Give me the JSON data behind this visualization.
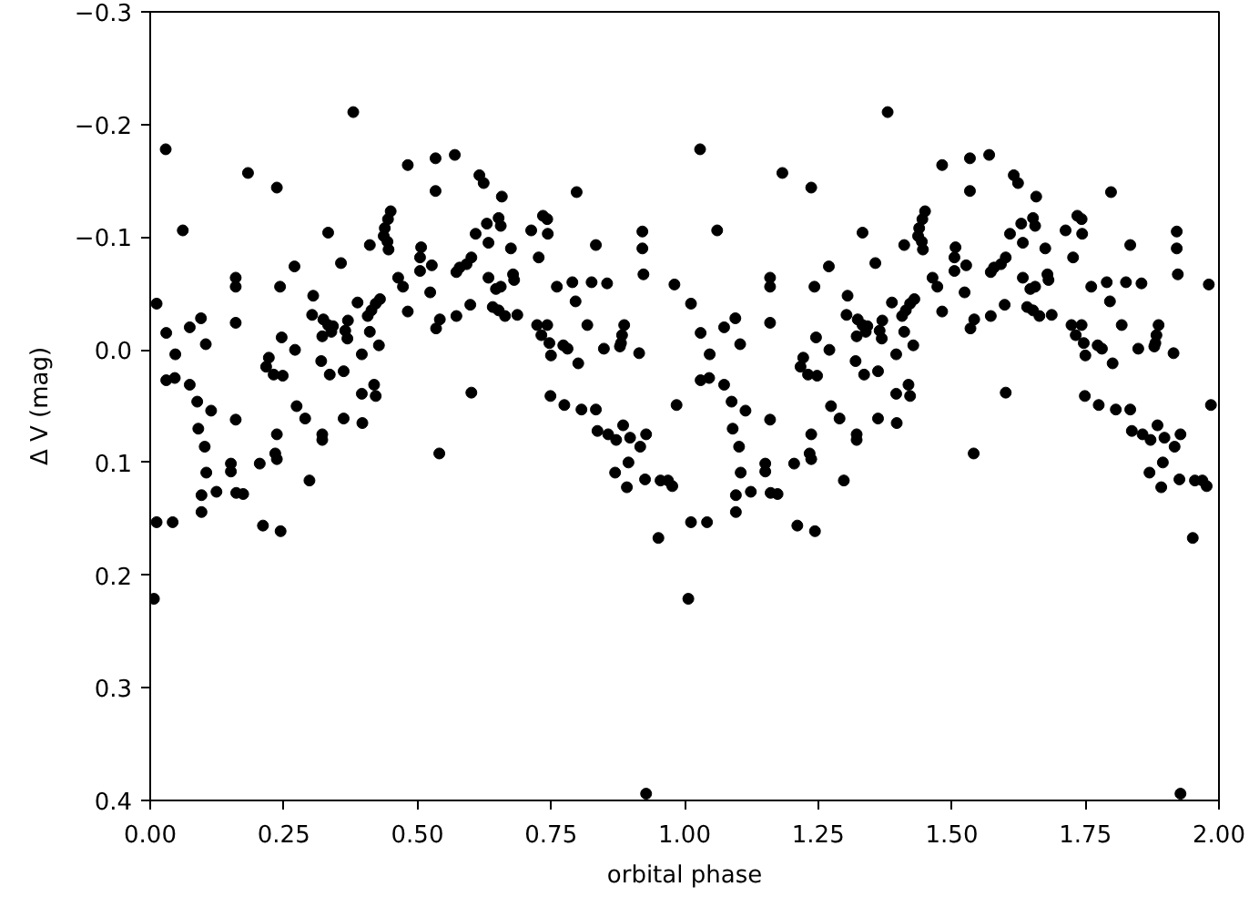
{
  "chart_data": {
    "type": "scatter",
    "xlabel": "orbital phase",
    "ylabel": "Δ V (mag)",
    "marker": "circle",
    "grid": false,
    "xlim": [
      0.0,
      2.0
    ],
    "ylim": [
      0.4,
      -0.3
    ],
    "xticks": [
      {
        "value": 0.0,
        "label": "0.00"
      },
      {
        "value": 0.25,
        "label": "0.25"
      },
      {
        "value": 0.5,
        "label": "0.50"
      },
      {
        "value": 0.75,
        "label": "0.75"
      },
      {
        "value": 1.0,
        "label": "1.00"
      },
      {
        "value": 1.25,
        "label": "1.25"
      },
      {
        "value": 1.5,
        "label": "1.50"
      },
      {
        "value": 1.75,
        "label": "1.75"
      },
      {
        "value": 2.0,
        "label": "2.00"
      }
    ],
    "yticks": [
      {
        "value": -0.3,
        "label": "−0.3"
      },
      {
        "value": -0.2,
        "label": "−0.2"
      },
      {
        "value": -0.1,
        "label": "−0.1"
      },
      {
        "value": 0.0,
        "label": "0.0"
      },
      0.1,
      0.2,
      0.3,
      0.4
    ],
    "series": [
      {
        "color": "#000000",
        "x": [
          0.007,
          0.012,
          0.012,
          0.029,
          0.03,
          0.03,
          0.042,
          0.046,
          0.047,
          0.061,
          0.074,
          0.074,
          0.088,
          0.09,
          0.095,
          0.102,
          0.104,
          0.105,
          0.096,
          0.096,
          0.114,
          0.124,
          0.151,
          0.151,
          0.161,
          0.174,
          0.16,
          0.16,
          0.16,
          0.16,
          0.183,
          0.205,
          0.211,
          0.222,
          0.217,
          0.231,
          0.234,
          0.237,
          0.237,
          0.237,
          0.243,
          0.246,
          0.248,
          0.244,
          0.27,
          0.271,
          0.274,
          0.29,
          0.298,
          0.303,
          0.305,
          0.32,
          0.322,
          0.324,
          0.322,
          0.322,
          0.333,
          0.333,
          0.336,
          0.342,
          0.339,
          0.357,
          0.362,
          0.362,
          0.365,
          0.369,
          0.37,
          0.38,
          0.388,
          0.396,
          0.396,
          0.397,
          0.407,
          0.411,
          0.411,
          0.414,
          0.419,
          0.422,
          0.422,
          0.428,
          0.43,
          0.437,
          0.439,
          0.444,
          0.445,
          0.446,
          0.45,
          0.464,
          0.473,
          0.482,
          0.482,
          0.505,
          0.505,
          0.507,
          0.524,
          0.527,
          0.534,
          0.534,
          0.535,
          0.541,
          0.542,
          0.57,
          0.573,
          0.573,
          0.579,
          0.592,
          0.599,
          0.601,
          0.601,
          0.609,
          0.616,
          0.624,
          0.63,
          0.633,
          0.633,
          0.641,
          0.647,
          0.652,
          0.652,
          0.656,
          0.656,
          0.658,
          0.664,
          0.675,
          0.679,
          0.681,
          0.687,
          0.713,
          0.724,
          0.727,
          0.732,
          0.735,
          0.743,
          0.743,
          0.744,
          0.747,
          0.749,
          0.75,
          0.761,
          0.773,
          0.775,
          0.781,
          0.79,
          0.796,
          0.798,
          0.801,
          0.807,
          0.818,
          0.826,
          0.834,
          0.834,
          0.837,
          0.849,
          0.855,
          0.857,
          0.885,
          0.87,
          0.872,
          0.879,
          0.881,
          0.883,
          0.887,
          0.892,
          0.895,
          0.898,
          0.915,
          0.917,
          0.921,
          0.921,
          0.923,
          0.926,
          0.928,
          0.928,
          0.951,
          0.955,
          0.969,
          0.977,
          0.981,
          0.985,
          1.007,
          1.012,
          1.012,
          1.029,
          1.03,
          1.03,
          1.042,
          1.046,
          1.047,
          1.061,
          1.074,
          1.074,
          1.088,
          1.09,
          1.095,
          1.102,
          1.104,
          1.105,
          1.096,
          1.096,
          1.114,
          1.124,
          1.151,
          1.151,
          1.161,
          1.174,
          1.16,
          1.16,
          1.16,
          1.16,
          1.183,
          1.205,
          1.211,
          1.222,
          1.217,
          1.231,
          1.234,
          1.237,
          1.237,
          1.237,
          1.243,
          1.246,
          1.248,
          1.244,
          1.27,
          1.271,
          1.274,
          1.29,
          1.298,
          1.303,
          1.305,
          1.32,
          1.322,
          1.324,
          1.322,
          1.322,
          1.333,
          1.333,
          1.336,
          1.342,
          1.339,
          1.357,
          1.362,
          1.362,
          1.365,
          1.369,
          1.37,
          1.38,
          1.388,
          1.396,
          1.396,
          1.397,
          1.407,
          1.411,
          1.411,
          1.414,
          1.419,
          1.422,
          1.422,
          1.428,
          1.43,
          1.437,
          1.439,
          1.444,
          1.445,
          1.446,
          1.45,
          1.464,
          1.473,
          1.482,
          1.482,
          1.505,
          1.505,
          1.507,
          1.524,
          1.527,
          1.534,
          1.534,
          1.535,
          1.541,
          1.542,
          1.57,
          1.573,
          1.573,
          1.579,
          1.592,
          1.599,
          1.601,
          1.601,
          1.609,
          1.616,
          1.624,
          1.63,
          1.633,
          1.633,
          1.641,
          1.647,
          1.652,
          1.652,
          1.656,
          1.656,
          1.658,
          1.664,
          1.675,
          1.679,
          1.681,
          1.687,
          1.713,
          1.724,
          1.727,
          1.732,
          1.735,
          1.743,
          1.743,
          1.744,
          1.747,
          1.749,
          1.75,
          1.761,
          1.773,
          1.775,
          1.781,
          1.79,
          1.796,
          1.798,
          1.801,
          1.807,
          1.818,
          1.826,
          1.834,
          1.834,
          1.837,
          1.849,
          1.855,
          1.857,
          1.885,
          1.87,
          1.872,
          1.879,
          1.881,
          1.883,
          1.887,
          1.892,
          1.895,
          1.898,
          1.915,
          1.917,
          1.921,
          1.921,
          1.923,
          1.926,
          1.928,
          1.928,
          1.951,
          1.955,
          1.969,
          1.977,
          1.981,
          1.985
        ],
        "values": [
          0.221,
          -0.041,
          0.153,
          -0.178,
          -0.015,
          0.027,
          0.153,
          0.025,
          0.004,
          -0.106,
          -0.02,
          0.031,
          0.046,
          0.07,
          -0.028,
          0.086,
          -0.005,
          0.109,
          0.129,
          0.144,
          0.054,
          0.126,
          0.101,
          0.108,
          0.127,
          0.128,
          -0.064,
          -0.056,
          -0.024,
          0.062,
          -0.157,
          0.101,
          0.156,
          0.007,
          0.015,
          0.022,
          0.092,
          0.097,
          0.075,
          -0.144,
          -0.056,
          -0.011,
          0.023,
          0.161,
          -0.074,
          0.0,
          0.05,
          0.061,
          0.116,
          -0.031,
          -0.048,
          0.01,
          -0.012,
          -0.027,
          0.075,
          0.08,
          -0.104,
          -0.022,
          0.022,
          -0.021,
          -0.016,
          -0.077,
          0.019,
          0.061,
          -0.017,
          -0.01,
          -0.026,
          -0.211,
          -0.042,
          0.004,
          0.039,
          0.065,
          -0.03,
          -0.093,
          -0.016,
          -0.035,
          0.031,
          -0.041,
          0.041,
          -0.004,
          -0.045,
          -0.101,
          -0.108,
          -0.096,
          -0.116,
          -0.089,
          -0.123,
          -0.064,
          -0.056,
          -0.164,
          -0.034,
          -0.07,
          -0.082,
          -0.091,
          -0.051,
          -0.075,
          -0.17,
          -0.141,
          -0.019,
          0.092,
          -0.027,
          -0.173,
          -0.069,
          -0.03,
          -0.073,
          -0.076,
          -0.04,
          -0.082,
          0.038,
          -0.103,
          -0.155,
          -0.148,
          -0.112,
          -0.095,
          -0.064,
          -0.038,
          -0.054,
          -0.117,
          -0.035,
          -0.11,
          -0.056,
          -0.136,
          -0.03,
          -0.09,
          -0.067,
          -0.062,
          -0.031,
          -0.106,
          -0.022,
          -0.082,
          -0.013,
          -0.119,
          -0.116,
          -0.022,
          -0.103,
          -0.006,
          0.041,
          0.005,
          -0.056,
          -0.004,
          0.049,
          -0.001,
          -0.06,
          -0.043,
          -0.14,
          0.012,
          0.053,
          -0.022,
          -0.06,
          -0.093,
          0.053,
          0.072,
          -0.001,
          -0.059,
          0.075,
          0.067,
          0.109,
          0.08,
          -0.003,
          -0.006,
          -0.013,
          -0.022,
          0.122,
          0.1,
          0.078,
          0.003,
          0.086,
          -0.105,
          -0.09,
          -0.067,
          0.115,
          0.075,
          0.394,
          0.167,
          0.116,
          0.116,
          0.121,
          -0.058,
          0.049,
          0.221,
          -0.041,
          0.153,
          -0.178,
          -0.015,
          0.027,
          0.153,
          0.025,
          0.004,
          -0.106,
          -0.02,
          0.031,
          0.046,
          0.07,
          -0.028,
          0.086,
          -0.005,
          0.109,
          0.129,
          0.144,
          0.054,
          0.126,
          0.101,
          0.108,
          0.127,
          0.128,
          -0.064,
          -0.056,
          -0.024,
          0.062,
          -0.157,
          0.101,
          0.156,
          0.007,
          0.015,
          0.022,
          0.092,
          0.097,
          0.075,
          -0.144,
          -0.056,
          -0.011,
          0.023,
          0.161,
          -0.074,
          0.0,
          0.05,
          0.061,
          0.116,
          -0.031,
          -0.048,
          0.01,
          -0.012,
          -0.027,
          0.075,
          0.08,
          -0.104,
          -0.022,
          0.022,
          -0.021,
          -0.016,
          -0.077,
          0.019,
          0.061,
          -0.017,
          -0.01,
          -0.026,
          -0.211,
          -0.042,
          0.004,
          0.039,
          0.065,
          -0.03,
          -0.093,
          -0.016,
          -0.035,
          0.031,
          -0.041,
          0.041,
          -0.004,
          -0.045,
          -0.101,
          -0.108,
          -0.096,
          -0.116,
          -0.089,
          -0.123,
          -0.064,
          -0.056,
          -0.164,
          -0.034,
          -0.07,
          -0.082,
          -0.091,
          -0.051,
          -0.075,
          -0.17,
          -0.141,
          -0.019,
          0.092,
          -0.027,
          -0.173,
          -0.069,
          -0.03,
          -0.073,
          -0.076,
          -0.04,
          -0.082,
          0.038,
          -0.103,
          -0.155,
          -0.148,
          -0.112,
          -0.095,
          -0.064,
          -0.038,
          -0.054,
          -0.117,
          -0.035,
          -0.11,
          -0.056,
          -0.136,
          -0.03,
          -0.09,
          -0.067,
          -0.062,
          -0.031,
          -0.106,
          -0.022,
          -0.082,
          -0.013,
          -0.119,
          -0.116,
          -0.022,
          -0.103,
          -0.006,
          0.041,
          0.005,
          -0.056,
          -0.004,
          0.049,
          -0.001,
          -0.06,
          -0.043,
          -0.14,
          0.012,
          0.053,
          -0.022,
          -0.06,
          -0.093,
          0.053,
          0.072,
          -0.001,
          -0.059,
          0.075,
          0.067,
          0.109,
          0.08,
          -0.003,
          -0.006,
          -0.013,
          -0.022,
          0.122,
          0.1,
          0.078,
          0.003,
          0.086,
          -0.105,
          -0.09,
          -0.067,
          0.115,
          0.075,
          0.394,
          0.167,
          0.116,
          0.116,
          0.121,
          -0.058,
          0.049
        ]
      }
    ]
  }
}
